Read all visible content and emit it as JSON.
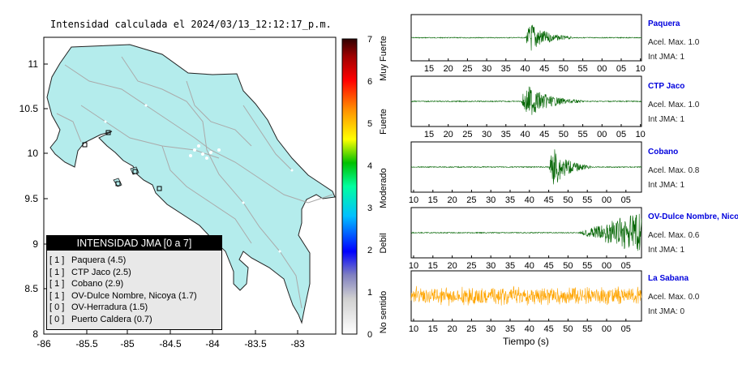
{
  "map": {
    "title": "Intensidad calculada el 2024/03/13_12:12:17_p.m.",
    "lon_ticks": [
      "-86",
      "-85.5",
      "-85",
      "-84.5",
      "-84",
      "-83.5",
      "-83"
    ],
    "lat_ticks": [
      "11",
      "10.5",
      "10",
      "9.5",
      "9",
      "8.5",
      "8"
    ],
    "land_color": "#b4ecec",
    "road_color": "#aaaaaa"
  },
  "colorbar": {
    "ticks": [
      "0",
      "1",
      "2",
      "3",
      "4",
      "5",
      "6",
      "7"
    ],
    "labels": [
      "No sentido",
      "Debil",
      "Moderado",
      "Fuerte",
      "Muy Fuerte"
    ]
  },
  "legend": {
    "title": "INTENSIDAD JMA [0 a 7]",
    "items": [
      {
        "bracket": "[ 1 ]",
        "text": "Paquera (4.5)"
      },
      {
        "bracket": "[ 1 ]",
        "text": "CTP Jaco (2.5)"
      },
      {
        "bracket": "[ 1 ]",
        "text": "Cobano (2.9)"
      },
      {
        "bracket": "[ 1 ]",
        "text": "OV-Dulce Nombre, Nicoya (1.7)"
      },
      {
        "bracket": "[ 0 ]",
        "text": "OV-Herradura (1.5)"
      },
      {
        "bracket": "[ 0 ]",
        "text": "Puerto Caldera (0.7)"
      }
    ]
  },
  "traces": [
    {
      "name": "Paquera",
      "acc": "Acel. Max. 1.0",
      "int": "Int JMA: 1",
      "ticks": [
        "15",
        "20",
        "25",
        "30",
        "35",
        "40",
        "45",
        "50",
        "55",
        "00",
        "05",
        "10"
      ],
      "color": "#006400"
    },
    {
      "name": "CTP Jaco",
      "acc": "Acel. Max. 1.0",
      "int": "Int JMA: 1",
      "ticks": [
        "15",
        "20",
        "25",
        "30",
        "35",
        "40",
        "45",
        "50",
        "55",
        "00",
        "05",
        "10"
      ],
      "color": "#006400"
    },
    {
      "name": "Cobano",
      "acc": "Acel. Max. 0.8",
      "int": "Int JMA: 1",
      "ticks": [
        "10",
        "15",
        "20",
        "25",
        "30",
        "35",
        "40",
        "45",
        "50",
        "55",
        "00",
        "05"
      ],
      "color": "#006400"
    },
    {
      "name": "OV-Dulce Nombre, Nicoya",
      "acc": "Acel. Max. 0.6",
      "int": "Int JMA: 1",
      "ticks": [
        "10",
        "15",
        "20",
        "25",
        "30",
        "35",
        "40",
        "45",
        "50",
        "55",
        "00",
        "05"
      ],
      "color": "#006400"
    },
    {
      "name": "La Sabana",
      "acc": "Acel. Max. 0.0",
      "int": "Int JMA: 0",
      "ticks": [
        "10",
        "15",
        "20",
        "25",
        "30",
        "35",
        "40",
        "45",
        "50",
        "55",
        "00",
        "05"
      ],
      "color": "#ffa500"
    }
  ],
  "xlabel": "Tiempo (s)",
  "chart_data": {
    "type": "line",
    "title": "Intensidad calculada el 2024/03/13_12:12:17_p.m.",
    "xlabel": "Tiempo (s)",
    "series": [
      {
        "name": "Paquera",
        "max_acc": 1.0,
        "int_jma": 1
      },
      {
        "name": "CTP Jaco",
        "max_acc": 1.0,
        "int_jma": 1
      },
      {
        "name": "Cobano",
        "max_acc": 0.8,
        "int_jma": 1
      },
      {
        "name": "OV-Dulce Nombre, Nicoya",
        "max_acc": 0.6,
        "int_jma": 1
      },
      {
        "name": "La Sabana",
        "max_acc": 0.0,
        "int_jma": 0
      }
    ],
    "map_intensity_legend": [
      {
        "station": "Paquera",
        "int_jma": 1,
        "value": 4.5
      },
      {
        "station": "CTP Jaco",
        "int_jma": 1,
        "value": 2.5
      },
      {
        "station": "Cobano",
        "int_jma": 1,
        "value": 2.9
      },
      {
        "station": "OV-Dulce Nombre, Nicoya",
        "int_jma": 1,
        "value": 1.7
      },
      {
        "station": "OV-Herradura",
        "int_jma": 0,
        "value": 1.5
      },
      {
        "station": "Puerto Caldera",
        "int_jma": 0,
        "value": 0.7
      }
    ],
    "map_xlim": [
      -86,
      -82.6
    ],
    "map_ylim": [
      8,
      11.3
    ],
    "colorbar_range": [
      0,
      7
    ]
  }
}
